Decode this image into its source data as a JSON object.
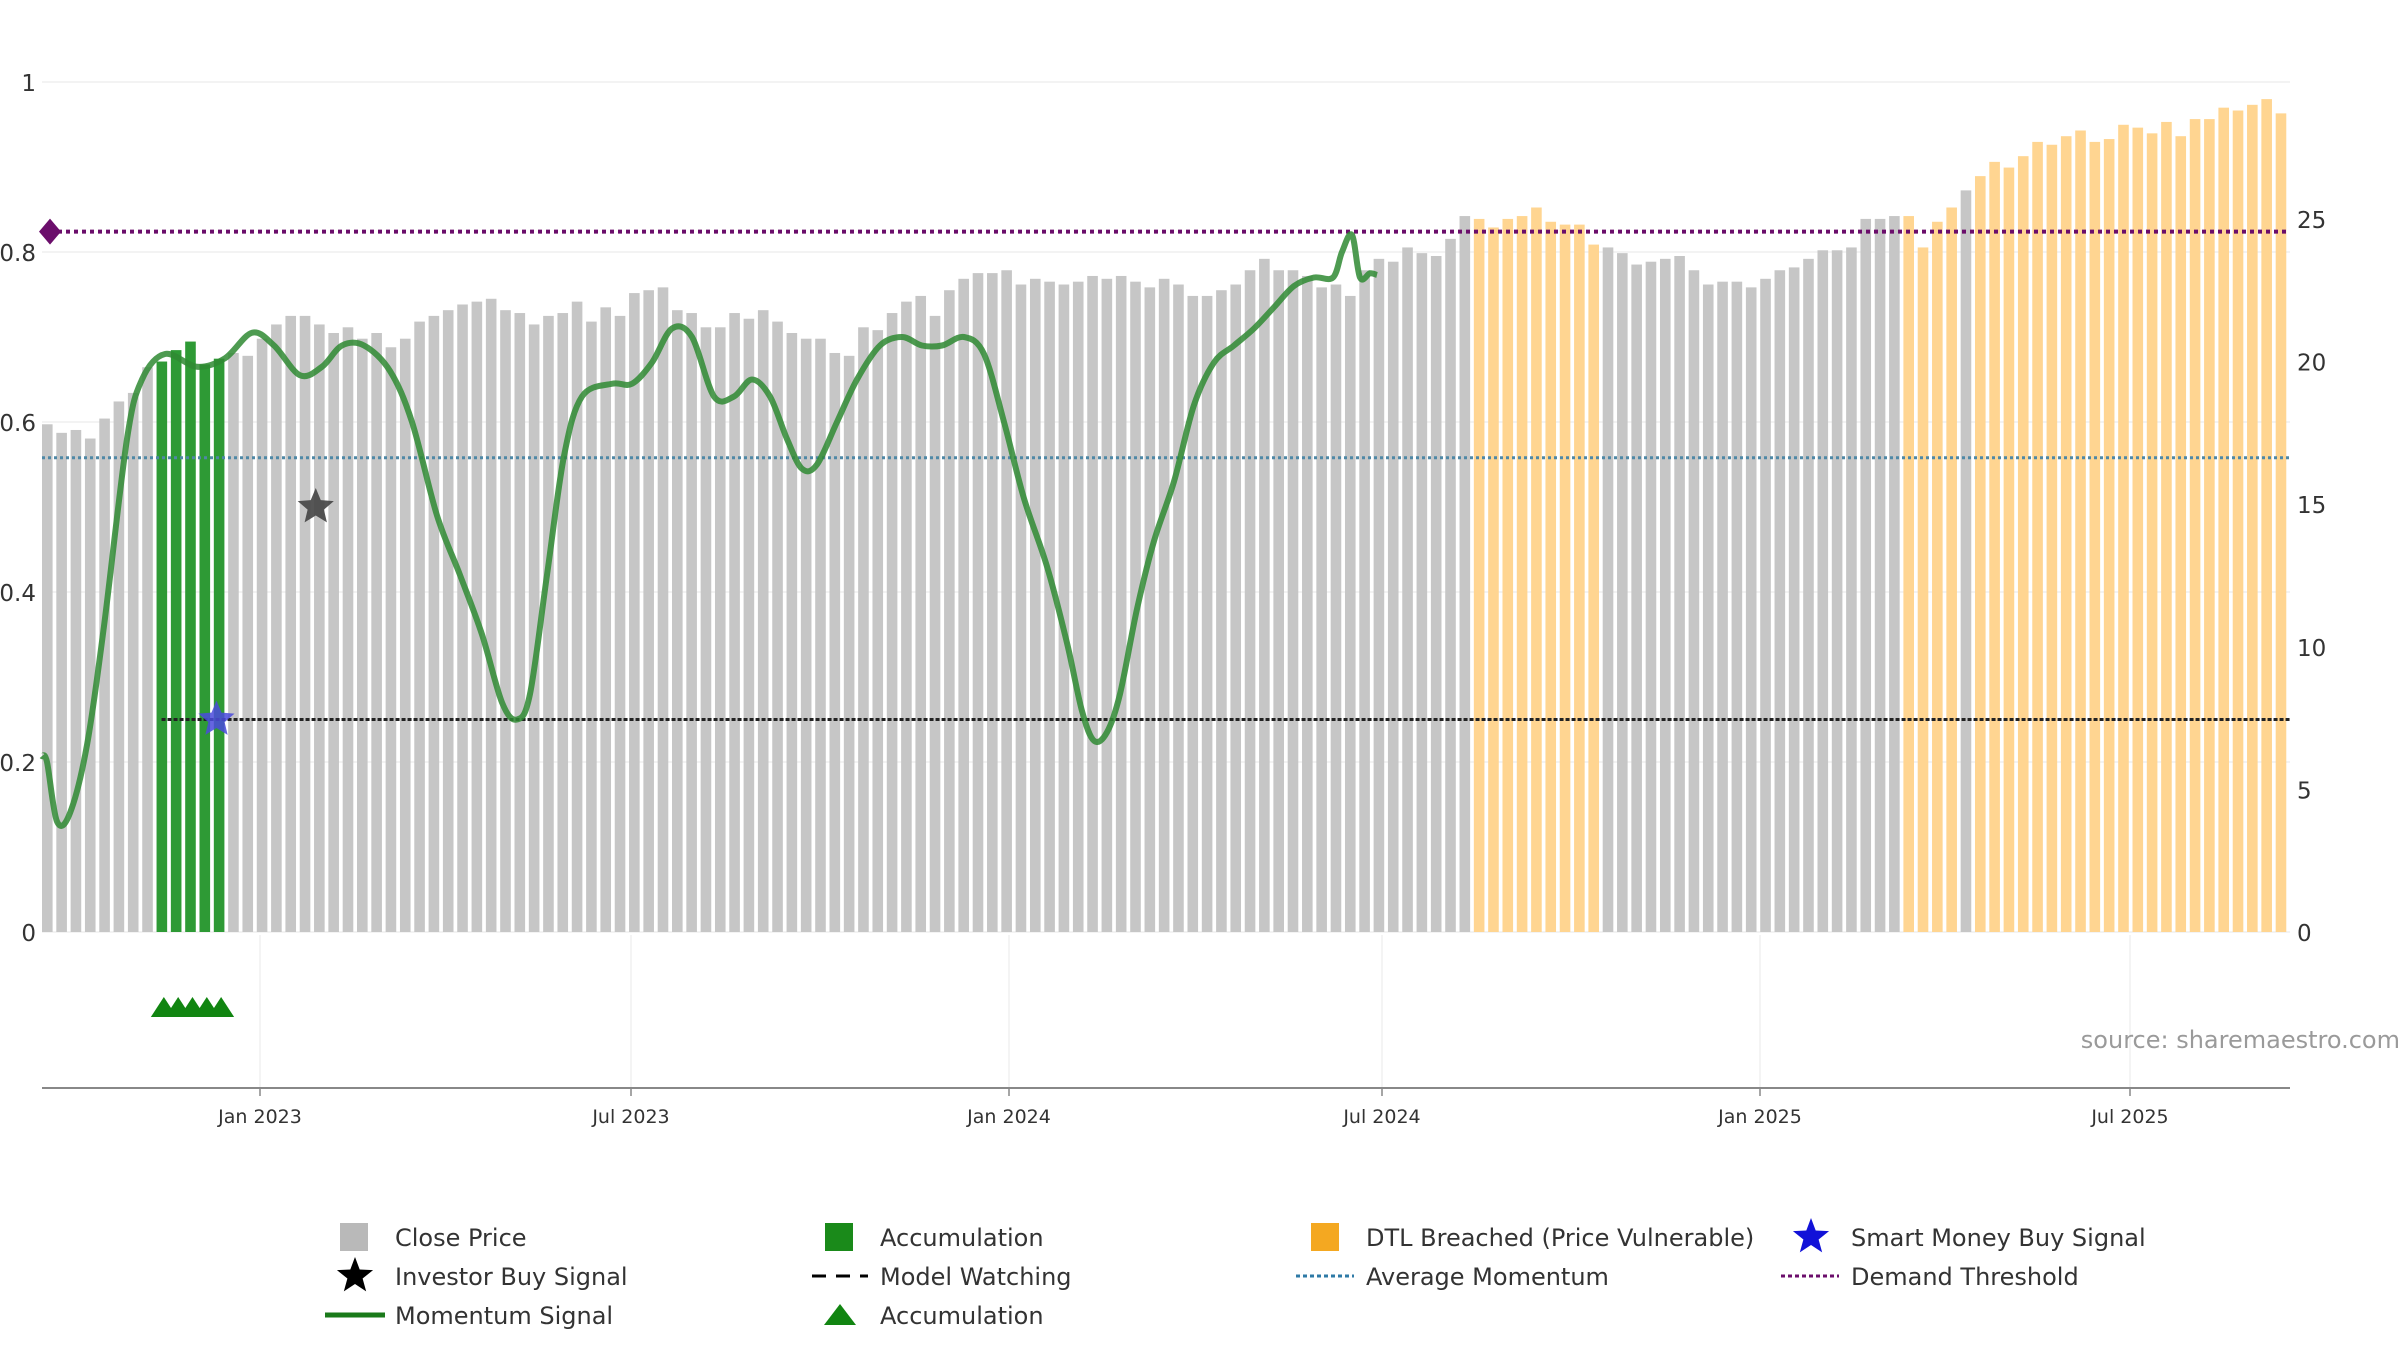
{
  "chart_data": {
    "type": "bar",
    "source_text": "source: sharemaestro.com",
    "x_ticks": [
      "Jan 2023",
      "Jul 2023",
      "Jan 2024",
      "Jul 2024",
      "Jan 2025",
      "Jul 2025"
    ],
    "left_axis": {
      "ticks": [
        "0",
        "0.2",
        "0.4",
        "0.6",
        "0.8",
        "1"
      ],
      "range": [
        0,
        1
      ]
    },
    "right_axis": {
      "ticks": [
        "0",
        "5",
        "10",
        "15",
        "20",
        "25"
      ],
      "range": [
        0,
        29.8
      ]
    },
    "close_price": [
      17.8,
      17.5,
      17.6,
      17.3,
      18.0,
      18.6,
      18.9,
      19.8,
      20.0,
      20.4,
      20.7,
      19.9,
      20.1,
      20.3,
      20.2,
      20.8,
      21.3,
      21.6,
      21.6,
      21.3,
      21.0,
      21.2,
      20.8,
      21.0,
      20.5,
      20.8,
      21.4,
      21.6,
      21.8,
      22.0,
      22.1,
      22.2,
      21.8,
      21.7,
      21.3,
      21.6,
      21.7,
      22.1,
      21.4,
      21.9,
      21.6,
      22.4,
      22.5,
      22.6,
      21.8,
      21.7,
      21.2,
      21.2,
      21.7,
      21.5,
      21.8,
      21.4,
      21.0,
      20.8,
      20.8,
      20.3,
      20.2,
      21.2,
      21.1,
      21.7,
      22.1,
      22.3,
      21.6,
      22.5,
      22.9,
      23.1,
      23.1,
      23.2,
      22.7,
      22.9,
      22.8,
      22.7,
      22.8,
      23.0,
      22.9,
      23.0,
      22.8,
      22.6,
      22.9,
      22.7,
      22.3,
      22.3,
      22.5,
      22.7,
      23.2,
      23.6,
      23.2,
      23.2,
      23.0,
      22.6,
      22.7,
      22.3,
      23.2,
      23.6,
      23.5,
      24.0,
      23.8,
      23.7,
      24.3,
      25.1,
      25.0,
      24.7,
      25.0,
      25.1,
      25.4,
      24.9,
      24.8,
      24.8,
      24.1,
      24.0,
      23.8,
      23.4,
      23.5,
      23.6,
      23.7,
      23.2,
      22.7,
      22.8,
      22.8,
      22.6,
      22.9,
      23.2,
      23.3,
      23.6,
      23.9,
      23.9,
      24.0,
      25.0,
      25.0,
      25.1,
      25.1,
      24.0,
      24.9,
      25.4,
      26.0,
      26.5,
      27.0,
      26.8,
      27.2,
      27.7,
      27.6,
      27.9,
      28.1,
      27.7,
      27.8,
      28.3,
      28.2,
      28.0,
      28.4,
      27.9,
      28.5,
      28.5,
      28.9,
      28.8,
      29.0,
      29.2,
      28.7
    ],
    "bar_categories": [
      "gray",
      "gray",
      "gray",
      "gray",
      "gray",
      "gray",
      "gray",
      "gray",
      "green",
      "green",
      "green",
      "green",
      "green",
      "gray",
      "gray",
      "gray",
      "gray",
      "gray",
      "gray",
      "gray",
      "gray",
      "gray",
      "gray",
      "gray",
      "gray",
      "gray",
      "gray",
      "gray",
      "gray",
      "gray",
      "gray",
      "gray",
      "gray",
      "gray",
      "gray",
      "gray",
      "gray",
      "gray",
      "gray",
      "gray",
      "gray",
      "gray",
      "gray",
      "gray",
      "gray",
      "gray",
      "gray",
      "gray",
      "gray",
      "gray",
      "gray",
      "gray",
      "gray",
      "gray",
      "gray",
      "gray",
      "gray",
      "gray",
      "gray",
      "gray",
      "gray",
      "gray",
      "gray",
      "gray",
      "gray",
      "gray",
      "gray",
      "gray",
      "gray",
      "gray",
      "gray",
      "gray",
      "gray",
      "gray",
      "gray",
      "gray",
      "gray",
      "gray",
      "gray",
      "gray",
      "gray",
      "gray",
      "gray",
      "gray",
      "gray",
      "gray",
      "gray",
      "gray",
      "gray",
      "gray",
      "gray",
      "gray",
      "gray",
      "gray",
      "gray",
      "gray",
      "gray",
      "gray",
      "gray",
      "gray",
      "orange",
      "orange",
      "orange",
      "orange",
      "orange",
      "orange",
      "orange",
      "orange",
      "orange",
      "gray",
      "gray",
      "gray",
      "gray",
      "gray",
      "gray",
      "gray",
      "gray",
      "gray",
      "gray",
      "gray",
      "gray",
      "gray",
      "gray",
      "gray",
      "gray",
      "gray",
      "gray",
      "gray",
      "gray",
      "gray",
      "orange",
      "orange",
      "orange",
      "orange",
      "gray",
      "orange",
      "orange",
      "orange",
      "orange",
      "orange",
      "orange",
      "orange",
      "orange",
      "orange",
      "orange",
      "orange",
      "orange",
      "orange",
      "orange",
      "orange",
      "orange",
      "orange",
      "orange",
      "orange",
      "orange",
      "orange",
      "orange",
      "orange"
    ],
    "momentum_signal": [
      [
        0,
        0.207
      ],
      [
        5,
        0.2
      ],
      [
        15,
        0.13
      ],
      [
        28,
        0.14
      ],
      [
        45,
        0.22
      ],
      [
        62,
        0.36
      ],
      [
        85,
        0.58
      ],
      [
        100,
        0.65
      ],
      [
        123,
        0.68
      ],
      [
        155,
        0.665
      ],
      [
        183,
        0.675
      ],
      [
        210,
        0.705
      ],
      [
        232,
        0.69
      ],
      [
        258,
        0.655
      ],
      [
        280,
        0.665
      ],
      [
        300,
        0.69
      ],
      [
        322,
        0.69
      ],
      [
        348,
        0.66
      ],
      [
        370,
        0.6
      ],
      [
        395,
        0.49
      ],
      [
        418,
        0.42
      ],
      [
        440,
        0.35
      ],
      [
        460,
        0.27
      ],
      [
        475,
        0.25
      ],
      [
        488,
        0.28
      ],
      [
        505,
        0.42
      ],
      [
        522,
        0.56
      ],
      [
        540,
        0.63
      ],
      [
        570,
        0.645
      ],
      [
        590,
        0.645
      ],
      [
        610,
        0.67
      ],
      [
        630,
        0.71
      ],
      [
        650,
        0.7
      ],
      [
        672,
        0.63
      ],
      [
        692,
        0.63
      ],
      [
        710,
        0.65
      ],
      [
        728,
        0.63
      ],
      [
        745,
        0.58
      ],
      [
        760,
        0.545
      ],
      [
        775,
        0.55
      ],
      [
        795,
        0.6
      ],
      [
        815,
        0.65
      ],
      [
        838,
        0.69
      ],
      [
        860,
        0.7
      ],
      [
        880,
        0.69
      ],
      [
        900,
        0.69
      ],
      [
        922,
        0.7
      ],
      [
        942,
        0.68
      ],
      [
        962,
        0.6
      ],
      [
        982,
        0.51
      ],
      [
        1005,
        0.43
      ],
      [
        1025,
        0.34
      ],
      [
        1040,
        0.26
      ],
      [
        1052,
        0.225
      ],
      [
        1065,
        0.235
      ],
      [
        1078,
        0.28
      ],
      [
        1095,
        0.38
      ],
      [
        1112,
        0.46
      ],
      [
        1132,
        0.53
      ],
      [
        1152,
        0.62
      ],
      [
        1172,
        0.67
      ],
      [
        1192,
        0.69
      ],
      [
        1212,
        0.71
      ],
      [
        1232,
        0.735
      ],
      [
        1252,
        0.76
      ],
      [
        1272,
        0.77
      ],
      [
        1291,
        0.77
      ],
      [
        1300,
        0.8
      ],
      [
        1310,
        0.82
      ],
      [
        1318,
        0.77
      ],
      [
        1328,
        0.775
      ],
      [
        1335,
        0.773
      ]
    ],
    "average_momentum": 0.558,
    "demand_threshold": 0.824,
    "model_watching_level": 0.25,
    "investor_buy_signal": {
      "x_index": 14,
      "y": 0.5
    },
    "smart_money_buy_signal": {
      "x_index": 10,
      "y": 0.25
    },
    "accumulation_markers_x_index": [
      8,
      9,
      10,
      11,
      12
    ],
    "colors": {
      "gray": "#c6c6c6",
      "green": "#2e9a35",
      "orange": "#ffd591",
      "momentum": "#2f8a33",
      "avg": "#4f88a6",
      "threshold": "#6b0e6b",
      "watching": "#222222",
      "accumulation_marker": "#118511",
      "smart_money": "#1a1ad8"
    },
    "legend": [
      {
        "label": "Close Price",
        "symbol": "square",
        "color": "#b9b9b9"
      },
      {
        "label": "Accumulation",
        "symbol": "square",
        "color": "#1a8a1a"
      },
      {
        "label": "DTL Breached (Price Vulnerable)",
        "symbol": "square",
        "color": "#f4a821"
      },
      {
        "label": "Smart Money Buy Signal",
        "symbol": "star",
        "color": "#1212d8"
      },
      {
        "label": "Investor Buy Signal",
        "symbol": "star",
        "color": "#000000"
      },
      {
        "label": "Model Watching",
        "symbol": "dash",
        "color": "#000000"
      },
      {
        "label": "Average Momentum",
        "symbol": "dot",
        "color": "#2e7aa6"
      },
      {
        "label": "Demand Threshold",
        "symbol": "dot",
        "color": "#6b0e6b"
      },
      {
        "label": "Momentum Signal",
        "symbol": "line",
        "color": "#1a7a1a"
      },
      {
        "label": "Accumulation",
        "symbol": "triangle",
        "color": "#118511"
      }
    ]
  }
}
